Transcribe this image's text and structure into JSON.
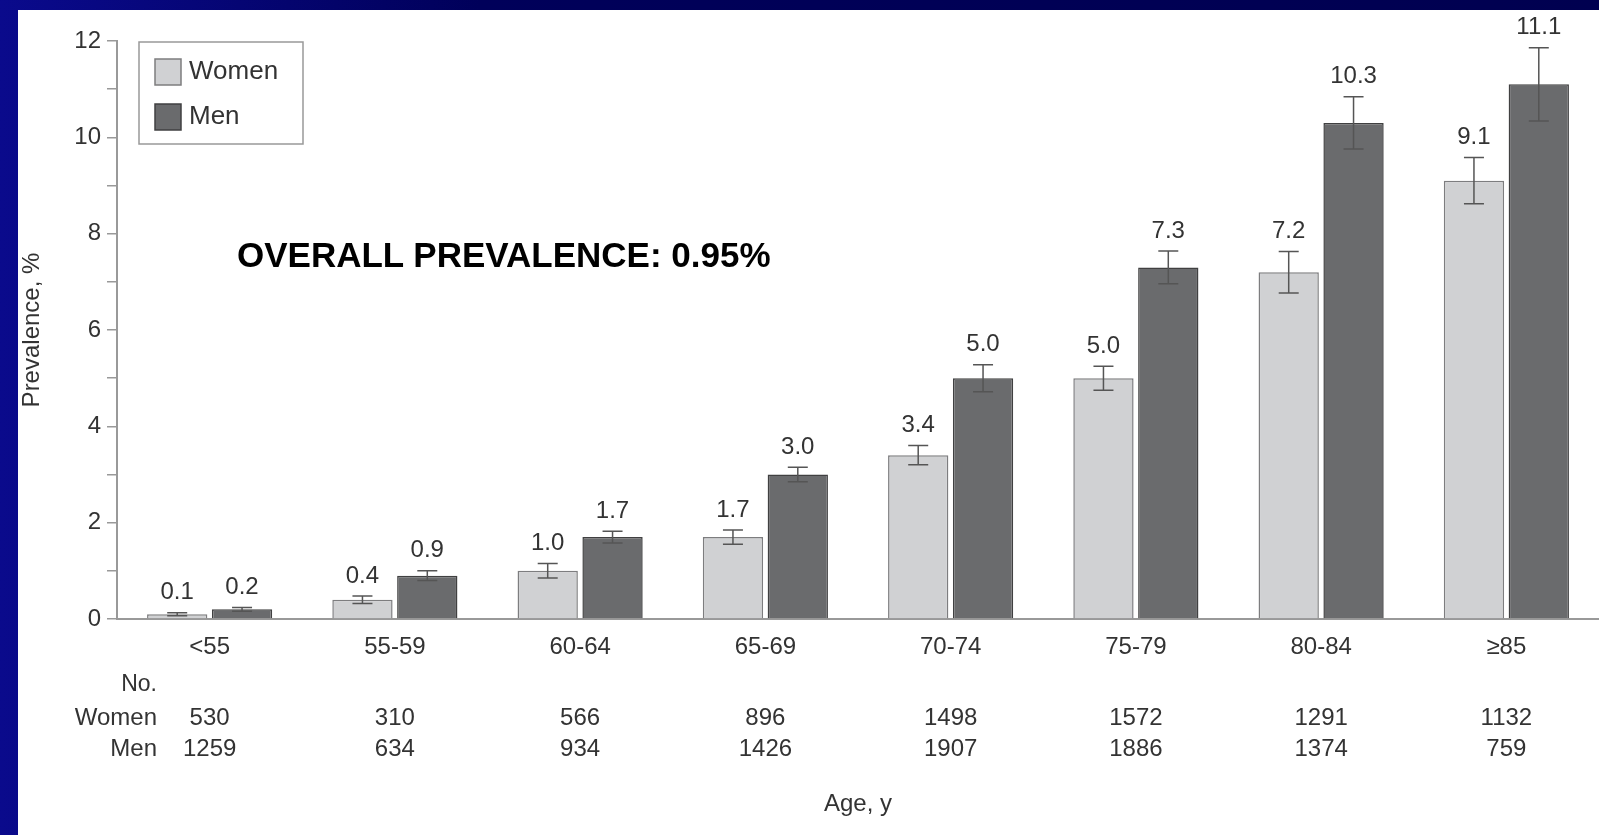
{
  "chart_data": {
    "type": "bar",
    "ylabel": "Prevalence, %",
    "categories": [
      "<55",
      "55-59",
      "60-64",
      "65-69",
      "70-74",
      "75-79",
      "80-84",
      "≥85"
    ],
    "series": [
      {
        "name": "Women",
        "color": "#d0d1d3",
        "values": [
          0.1,
          0.4,
          1.0,
          1.7,
          3.4,
          5.0,
          7.2,
          9.1
        ],
        "errors": [
          0.03,
          0.08,
          0.15,
          0.15,
          0.2,
          0.25,
          0.43,
          0.48
        ],
        "value_labels": [
          "0.1",
          "0.4",
          "1.0",
          "1.7",
          "3.4",
          "5.0",
          "7.2",
          "9.1"
        ]
      },
      {
        "name": "Men",
        "color": "#6a6b6d",
        "values": [
          0.2,
          0.9,
          1.7,
          3.0,
          5.0,
          7.3,
          10.3,
          11.1
        ],
        "errors": [
          0.04,
          0.1,
          0.12,
          0.15,
          0.28,
          0.34,
          0.54,
          0.76
        ],
        "value_labels": [
          "0.2",
          "0.9",
          "1.7",
          "3.0",
          "5.0",
          "7.3",
          "10.3",
          "11.1"
        ]
      }
    ],
    "ylim": [
      0,
      12
    ],
    "yticks": [
      0,
      {
        "value": 1,
        "label": null
      },
      2,
      {
        "value": 3,
        "label": null
      },
      4,
      {
        "value": 5,
        "label": null
      },
      6,
      {
        "value": 7,
        "label": null
      },
      8,
      {
        "value": 9,
        "label": null
      },
      10,
      {
        "value": 11,
        "label": null
      },
      12
    ],
    "grid": false,
    "legend": "top left",
    "annotations": [
      "OVERALL PREVALENCE: 0.95%",
      "No.",
      "530",
      "310",
      "566",
      "896",
      "1498",
      "1572",
      "1291",
      "1132",
      "1259",
      "634",
      "934",
      "1426",
      "1907",
      "1886",
      "1374",
      "759",
      "Age, y"
    ]
  }
}
